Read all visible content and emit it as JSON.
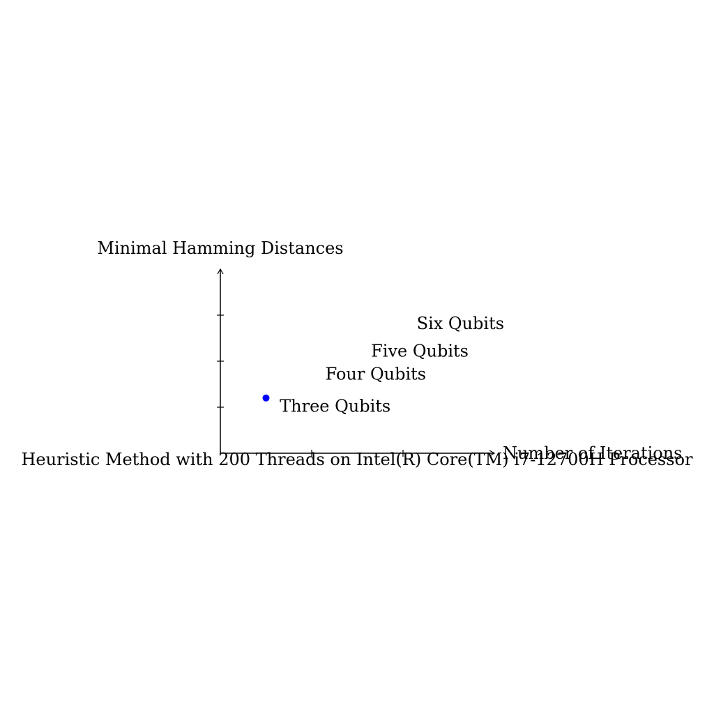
{
  "chart_data": {
    "type": "scatter",
    "title": "Heuristic Method with 200 Threads on Intel(R) Core(TM) i7-12700H Processor",
    "xlabel": "Number of Iterations",
    "ylabel": "Minimal Hamming Distances",
    "xlim": [
      0,
      6
    ],
    "ylim": [
      0,
      4
    ],
    "x_ticks": [
      2,
      4,
      6
    ],
    "y_ticks": [
      1,
      2,
      3,
      4
    ],
    "marker_color": "#0000ff",
    "series": [
      {
        "name": "Three Qubits",
        "points": [
          {
            "x": 1,
            "y": 1.2
          }
        ]
      }
    ],
    "annotations": [
      {
        "text": "Three Qubits",
        "x": 1.3,
        "y": 0.9
      },
      {
        "text": "Four Qubits",
        "x": 2.3,
        "y": 1.6
      },
      {
        "text": "Five Qubits",
        "x": 3.3,
        "y": 2.1
      },
      {
        "text": "Six Qubits",
        "x": 4.3,
        "y": 2.7
      }
    ]
  }
}
